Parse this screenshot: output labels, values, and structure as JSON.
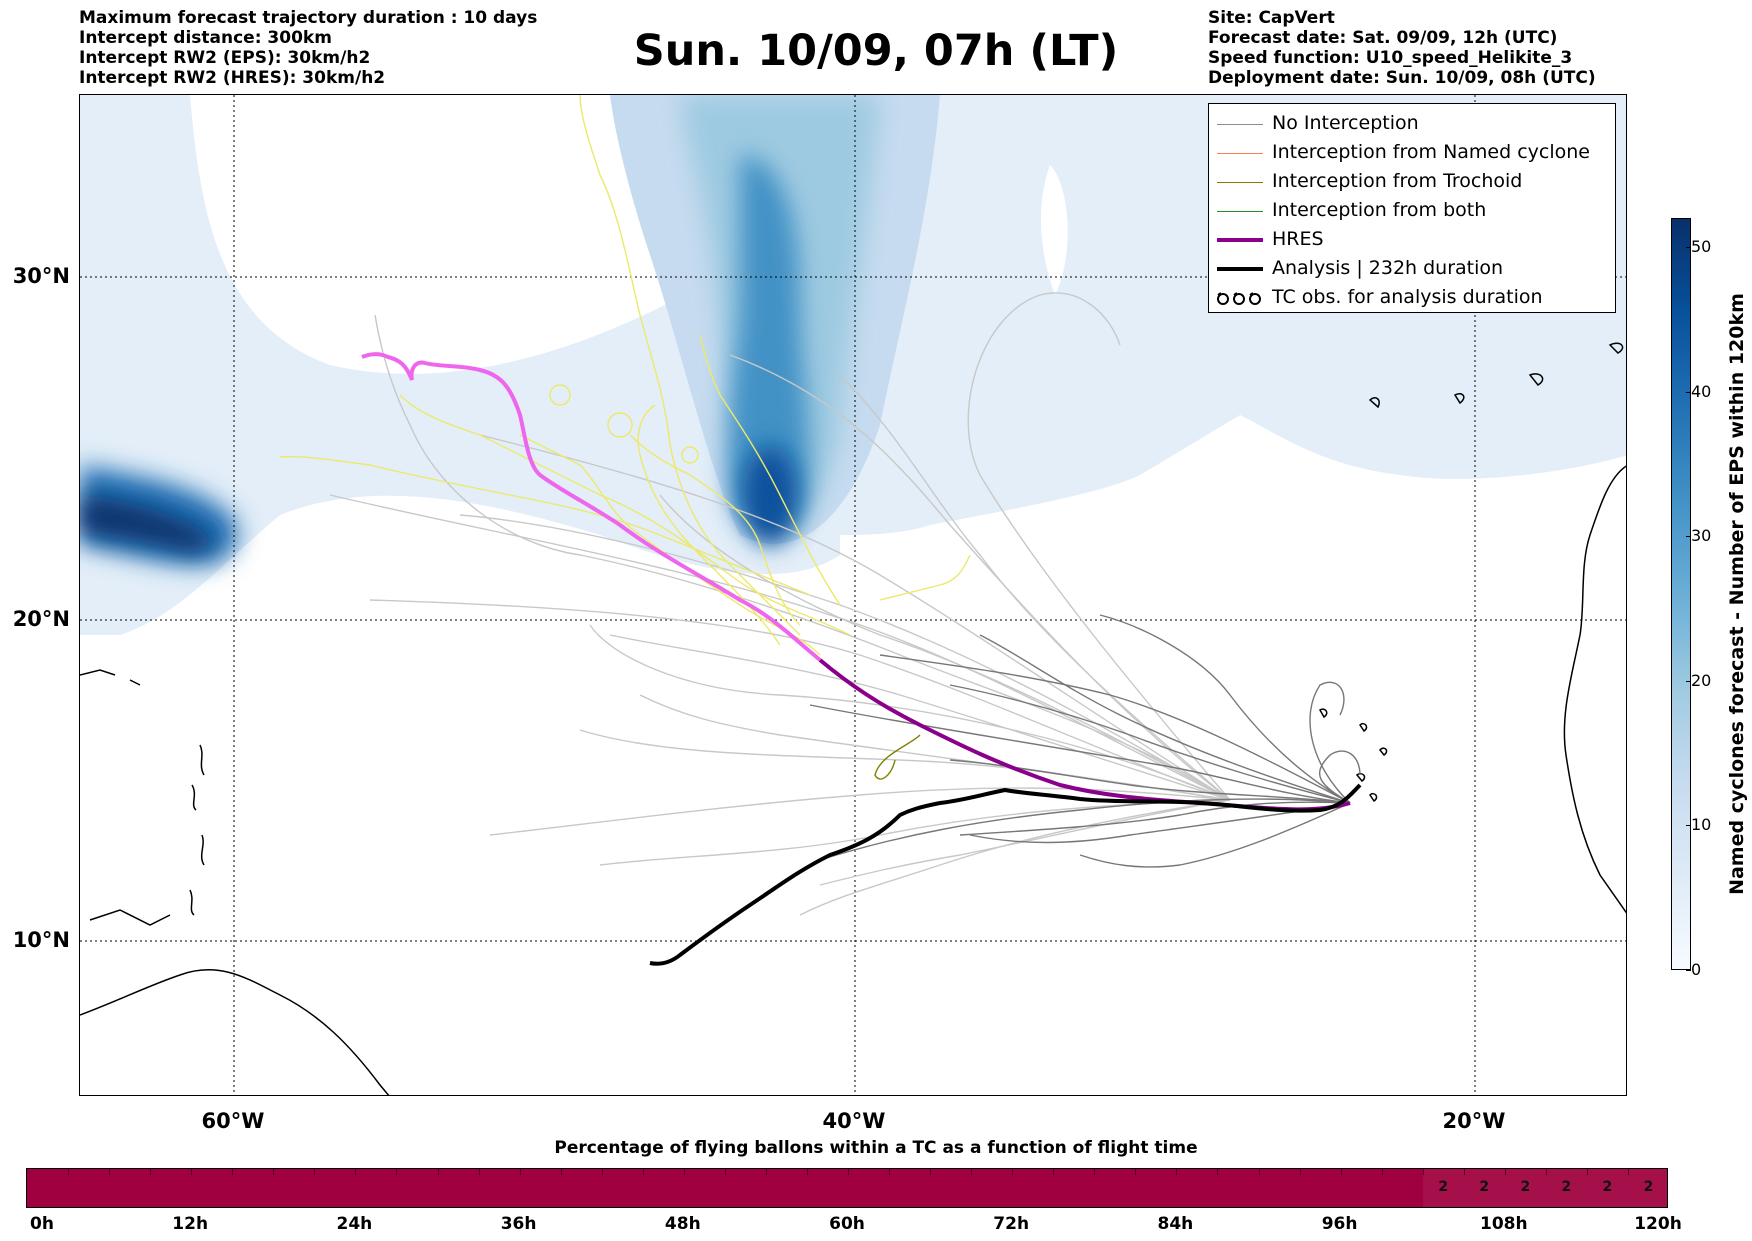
{
  "header_left": [
    "Maximum forecast trajectory duration : 10 days",
    "Intercept distance: 300km",
    "Intercept RW2 (EPS):  30km/h2",
    "Intercept RW2 (HRES): 30km/h2"
  ],
  "title": "Sun. 10/09, 07h (LT)",
  "header_right": [
    "Site: CapVert",
    "Forecast date: Sat. 09/09, 12h (UTC)",
    "Speed function: U10_speed_Helikite_3",
    "Deployment date: Sun. 10/09, 08h (UTC)"
  ],
  "map": {
    "lat_labels": [
      "30°N",
      "20°N",
      "10°N"
    ],
    "lon_labels": [
      "60°W",
      "40°W",
      "20°W"
    ],
    "gridlines": "dotted"
  },
  "legend": {
    "items": [
      {
        "label": "No Interception",
        "color": "#8c8c8c",
        "icon": "thin-line"
      },
      {
        "label": "Interception from Named cyclone",
        "color": "#ff7f50",
        "icon": "thin-line"
      },
      {
        "label": "Interception from Trochoid",
        "color": "#808000",
        "icon": "thin-line"
      },
      {
        "label": "Interception from both",
        "color": "#228b22",
        "icon": "thin-line"
      },
      {
        "label": "HRES",
        "color": "#8b008b",
        "icon": "thick-line"
      },
      {
        "label": "Analysis | 232h duration",
        "color": "#000000",
        "icon": "thick-line"
      },
      {
        "label": "TC obs. for analysis duration",
        "color": "#000000",
        "icon": "cyclone-symbols"
      }
    ]
  },
  "colorbar": {
    "title": "Named cyclones forecast - Number of EPS within 120km",
    "ticks": [
      "0",
      "10",
      "20",
      "30",
      "40",
      "50"
    ],
    "tick_values": [
      0,
      10,
      20,
      30,
      40,
      50
    ],
    "max": 52,
    "colors": [
      "#f7fbff",
      "#deebf7",
      "#c6dbef",
      "#9ecae1",
      "#6baed6",
      "#4292c6",
      "#2171b5",
      "#08519c",
      "#08306b"
    ]
  },
  "time_bar": {
    "title": "Percentage of flying ballons within a TC as a function of flight time",
    "ticks": [
      "0h",
      "12h",
      "24h",
      "36h",
      "48h",
      "60h",
      "72h",
      "84h",
      "96h",
      "108h",
      "120h"
    ],
    "main_color": "#a00040",
    "cells": [
      {
        "start_h": 102,
        "end_h": 105,
        "label": "2",
        "color": "#a5104a"
      },
      {
        "start_h": 105,
        "end_h": 108,
        "label": "2",
        "color": "#a5104a"
      },
      {
        "start_h": 108,
        "end_h": 111,
        "label": "2",
        "color": "#a5104a"
      },
      {
        "start_h": 111,
        "end_h": 114,
        "label": "2",
        "color": "#a5104a"
      },
      {
        "start_h": 114,
        "end_h": 117,
        "label": "2",
        "color": "#a5104a"
      },
      {
        "start_h": 117,
        "end_h": 120,
        "label": "2",
        "color": "#a5104a"
      }
    ]
  }
}
